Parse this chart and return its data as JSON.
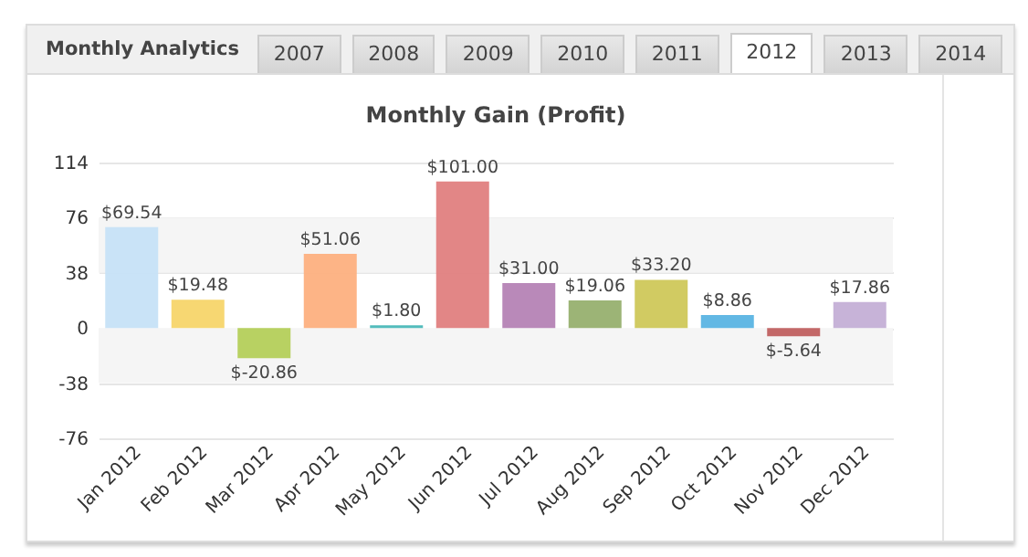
{
  "chart_data": {
    "type": "bar",
    "title": "Monthly Gain (Profit)",
    "categories": [
      "Jan 2012",
      "Feb 2012",
      "Mar 2012",
      "Apr 2012",
      "May 2012",
      "Jun 2012",
      "Jul 2012",
      "Aug 2012",
      "Sep 2012",
      "Oct 2012",
      "Nov 2012",
      "Dec 2012"
    ],
    "values": [
      69.54,
      19.48,
      -20.86,
      51.06,
      1.8,
      101.0,
      31.0,
      19.06,
      33.2,
      8.86,
      -5.64,
      17.86
    ],
    "value_labels": [
      "$69.54",
      "$19.48",
      "$-20.86",
      "$51.06",
      "$1.80",
      "$101.00",
      "$31.00",
      "$19.06",
      "$33.20",
      "$8.86",
      "$-5.64",
      "$17.86"
    ],
    "colors": [
      "#c6e2f7",
      "#f7d56a",
      "#b4cf5a",
      "#fdb07f",
      "#4ab8b8",
      "#e08080",
      "#b583b5",
      "#97b06f",
      "#cfc85a",
      "#5ab4e3",
      "#c06060",
      "#c4afd6"
    ],
    "ylim": [
      -76,
      114
    ],
    "yticks": [
      114,
      76,
      38,
      0,
      -38,
      -76
    ],
    "grid": "y",
    "bands": [
      {
        "axis": "y",
        "from": 38,
        "to": 76,
        "color": "#f5f5f5"
      },
      {
        "axis": "y",
        "from": -38,
        "to": 0,
        "color": "#f5f5f5"
      }
    ],
    "annotations": [
      "Monthly Analytics",
      "2007",
      "2008",
      "2009",
      "2010",
      "2011",
      "2012",
      "2013",
      "2014"
    ]
  }
}
